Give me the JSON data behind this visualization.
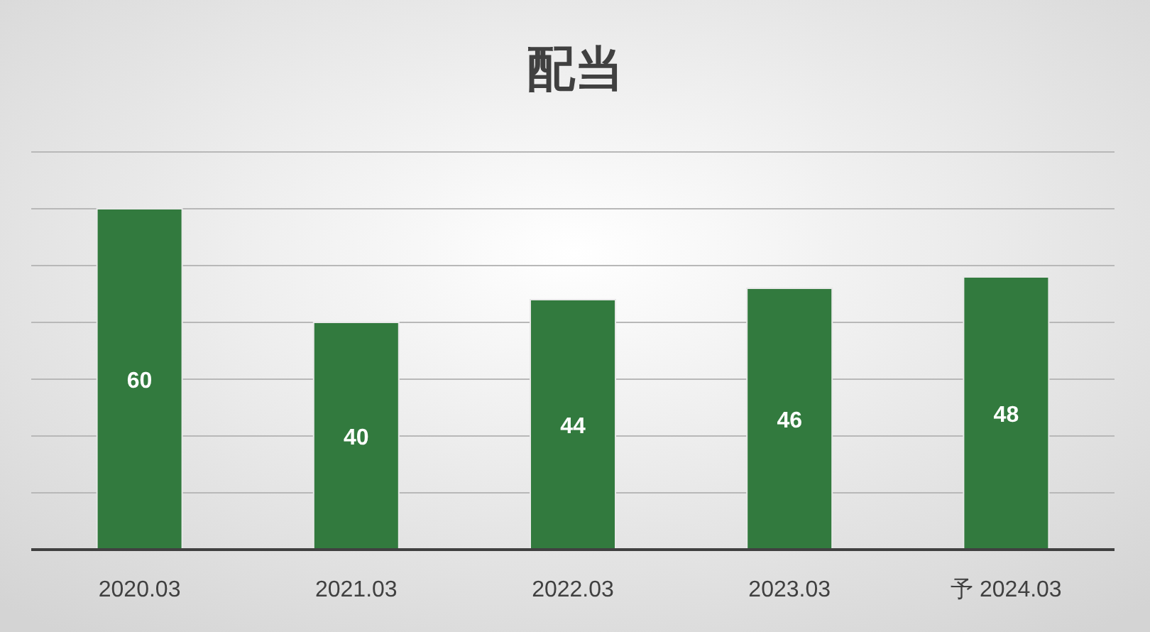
{
  "chart_data": {
    "type": "bar",
    "title": "配当",
    "categories": [
      "2020.03",
      "2021.03",
      "2022.03",
      "2023.03",
      "予 2024.03"
    ],
    "values": [
      60,
      40,
      44,
      46,
      48
    ],
    "color": "#327a3e",
    "ylim": [
      0,
      70
    ],
    "yticks": [
      {
        "value": 0,
        "label": null
      },
      {
        "value": 10,
        "label": null
      },
      {
        "value": 20,
        "label": null
      },
      {
        "value": 30,
        "label": null
      },
      {
        "value": 40,
        "label": null
      },
      {
        "value": 50,
        "label": null
      },
      {
        "value": 60,
        "label": null
      },
      {
        "value": 70,
        "label": null
      }
    ],
    "tick_labels": "x",
    "grid": "y",
    "data_labels": true
  }
}
